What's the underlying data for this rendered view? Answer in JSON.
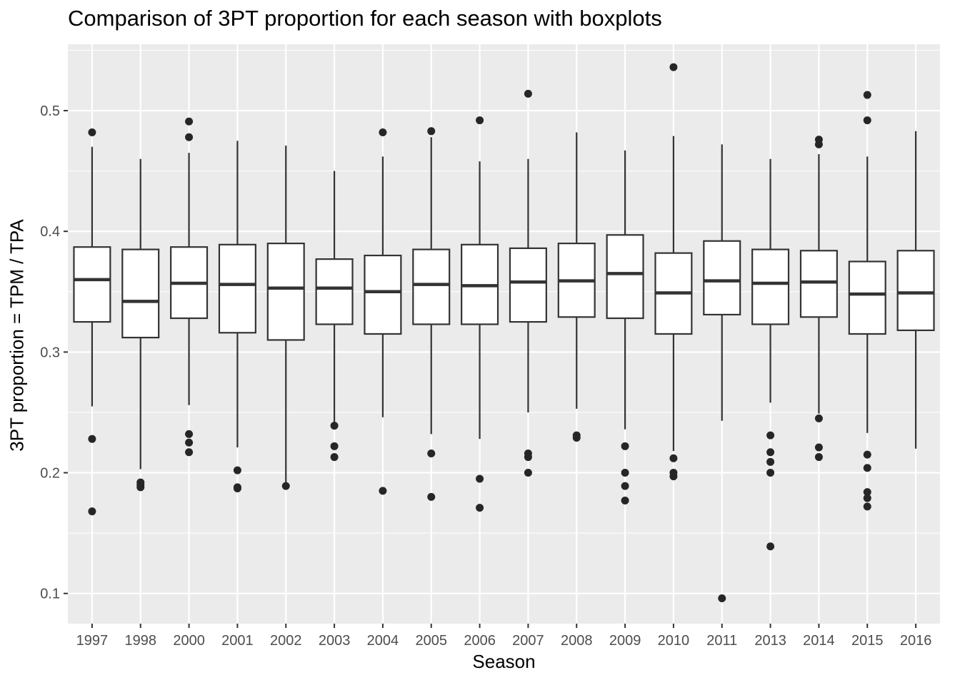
{
  "chart_data": {
    "type": "boxplot",
    "title": "Comparison of 3PT proportion for each season with boxplots",
    "xlabel": "Season",
    "ylabel": "3PT proportion = TPM / TPA",
    "ylim": [
      0.075,
      0.555
    ],
    "yticks": [
      0.1,
      0.2,
      0.3,
      0.4,
      0.5
    ],
    "ytick_labels": [
      "0.1",
      "0.2",
      "0.3",
      "0.4",
      "0.5"
    ],
    "grid": true,
    "colors": {
      "panel": "#ebebeb",
      "grid": "#ffffff",
      "box_fill": "#ffffff",
      "box_line": "#333333",
      "outlier": "#262626"
    },
    "categories": [
      "1997",
      "1998",
      "2000",
      "2001",
      "2002",
      "2003",
      "2004",
      "2005",
      "2006",
      "2007",
      "2008",
      "2009",
      "2010",
      "2011",
      "2013",
      "2014",
      "2015",
      "2016"
    ],
    "boxes": [
      {
        "season": "1997",
        "whisker_low": 0.255,
        "q1": 0.325,
        "median": 0.36,
        "q3": 0.387,
        "whisker_high": 0.47,
        "outliers": [
          0.482,
          0.228,
          0.168
        ]
      },
      {
        "season": "1998",
        "whisker_low": 0.203,
        "q1": 0.312,
        "median": 0.342,
        "q3": 0.385,
        "whisker_high": 0.46,
        "outliers": [
          0.192,
          0.19,
          0.188
        ]
      },
      {
        "season": "2000",
        "whisker_low": 0.256,
        "q1": 0.328,
        "median": 0.357,
        "q3": 0.387,
        "whisker_high": 0.465,
        "outliers": [
          0.491,
          0.478,
          0.232,
          0.225,
          0.217
        ]
      },
      {
        "season": "2001",
        "whisker_low": 0.221,
        "q1": 0.316,
        "median": 0.356,
        "q3": 0.389,
        "whisker_high": 0.475,
        "outliers": [
          0.202,
          0.188,
          0.187
        ]
      },
      {
        "season": "2002",
        "whisker_low": 0.192,
        "q1": 0.31,
        "median": 0.353,
        "q3": 0.39,
        "whisker_high": 0.471,
        "outliers": [
          0.189
        ]
      },
      {
        "season": "2003",
        "whisker_low": 0.241,
        "q1": 0.323,
        "median": 0.353,
        "q3": 0.377,
        "whisker_high": 0.45,
        "outliers": [
          0.239,
          0.222,
          0.213
        ]
      },
      {
        "season": "2004",
        "whisker_low": 0.246,
        "q1": 0.315,
        "median": 0.35,
        "q3": 0.38,
        "whisker_high": 0.462,
        "outliers": [
          0.482,
          0.185
        ]
      },
      {
        "season": "2005",
        "whisker_low": 0.232,
        "q1": 0.323,
        "median": 0.356,
        "q3": 0.385,
        "whisker_high": 0.478,
        "outliers": [
          0.483,
          0.216,
          0.18
        ]
      },
      {
        "season": "2006",
        "whisker_low": 0.228,
        "q1": 0.323,
        "median": 0.355,
        "q3": 0.389,
        "whisker_high": 0.458,
        "outliers": [
          0.492,
          0.195,
          0.171
        ]
      },
      {
        "season": "2007",
        "whisker_low": 0.25,
        "q1": 0.325,
        "median": 0.358,
        "q3": 0.386,
        "whisker_high": 0.46,
        "outliers": [
          0.514,
          0.216,
          0.213,
          0.2
        ]
      },
      {
        "season": "2008",
        "whisker_low": 0.253,
        "q1": 0.329,
        "median": 0.359,
        "q3": 0.39,
        "whisker_high": 0.482,
        "outliers": [
          0.231,
          0.229
        ]
      },
      {
        "season": "2009",
        "whisker_low": 0.236,
        "q1": 0.328,
        "median": 0.365,
        "q3": 0.397,
        "whisker_high": 0.467,
        "outliers": [
          0.222,
          0.2,
          0.189,
          0.177
        ]
      },
      {
        "season": "2010",
        "whisker_low": 0.218,
        "q1": 0.315,
        "median": 0.349,
        "q3": 0.382,
        "whisker_high": 0.479,
        "outliers": [
          0.536,
          0.212,
          0.2,
          0.197
        ]
      },
      {
        "season": "2011",
        "whisker_low": 0.243,
        "q1": 0.331,
        "median": 0.359,
        "q3": 0.392,
        "whisker_high": 0.472,
        "outliers": [
          0.096
        ]
      },
      {
        "season": "2013",
        "whisker_low": 0.258,
        "q1": 0.323,
        "median": 0.357,
        "q3": 0.385,
        "whisker_high": 0.46,
        "outliers": [
          0.231,
          0.217,
          0.209,
          0.2,
          0.139
        ]
      },
      {
        "season": "2014",
        "whisker_low": 0.249,
        "q1": 0.329,
        "median": 0.358,
        "q3": 0.384,
        "whisker_high": 0.464,
        "outliers": [
          0.476,
          0.472,
          0.245,
          0.221,
          0.213
        ]
      },
      {
        "season": "2015",
        "whisker_low": 0.233,
        "q1": 0.315,
        "median": 0.348,
        "q3": 0.375,
        "whisker_high": 0.462,
        "outliers": [
          0.513,
          0.492,
          0.215,
          0.204,
          0.184,
          0.179,
          0.172
        ]
      },
      {
        "season": "2016",
        "whisker_low": 0.22,
        "q1": 0.318,
        "median": 0.349,
        "q3": 0.384,
        "whisker_high": 0.483,
        "outliers": []
      }
    ]
  }
}
